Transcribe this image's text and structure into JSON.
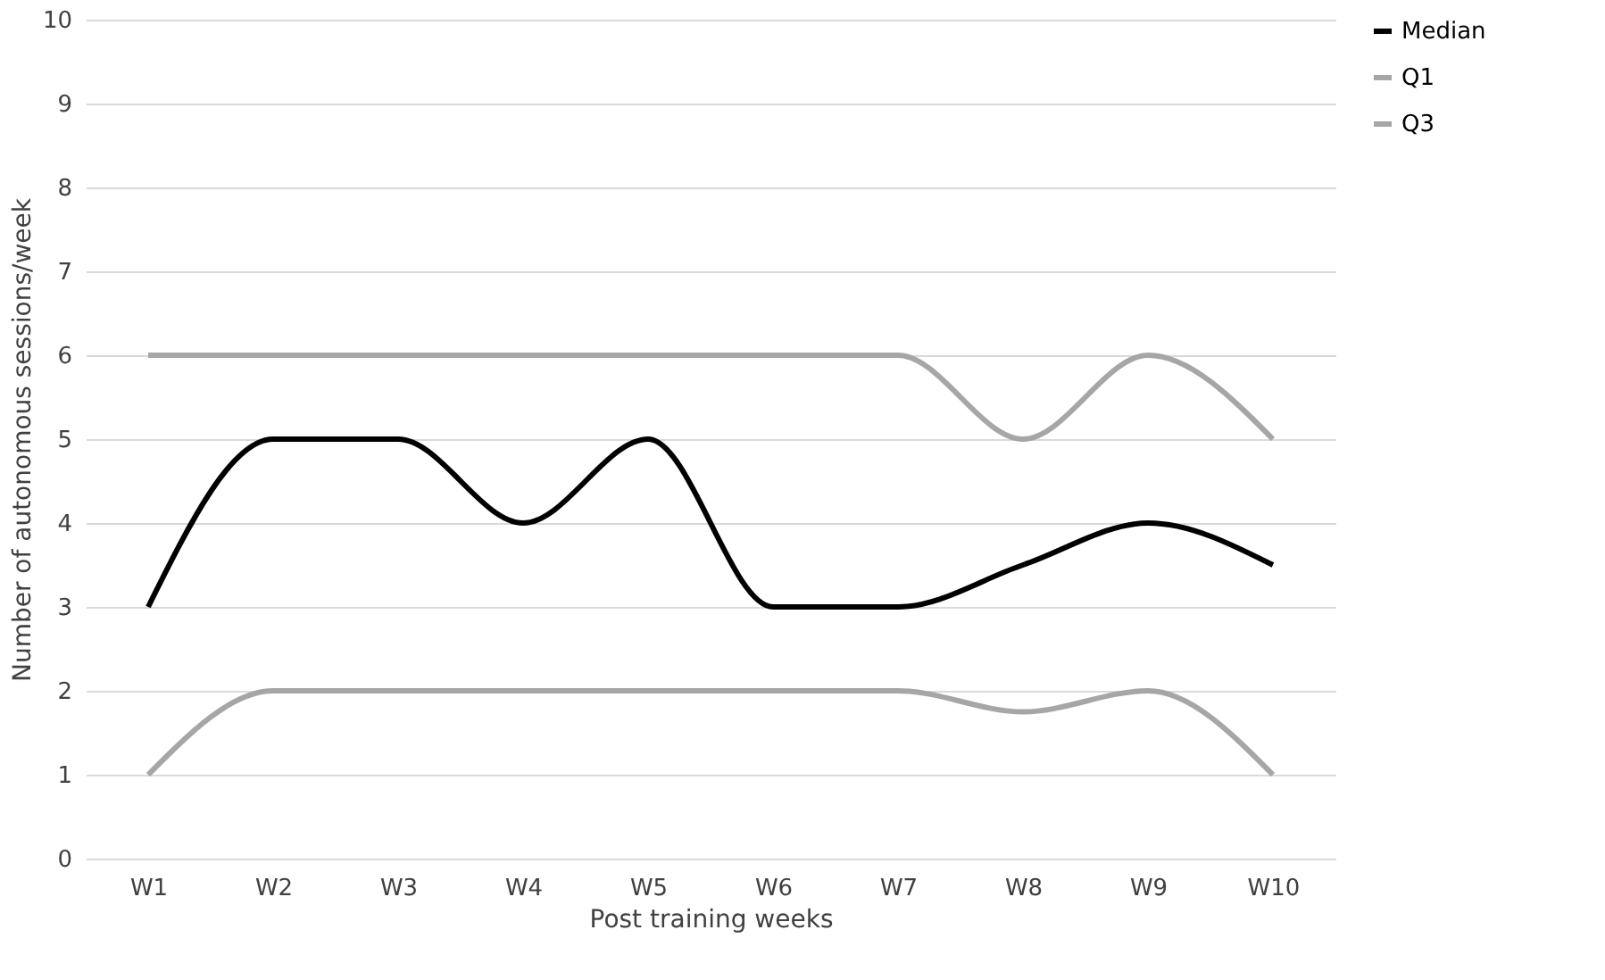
{
  "chart_data": {
    "type": "line",
    "xlabel": "Post training weeks",
    "ylabel": "Number of autonomous sessions/week",
    "categories": [
      "W1",
      "W2",
      "W3",
      "W4",
      "W5",
      "W6",
      "W7",
      "W8",
      "W9",
      "W10"
    ],
    "series": [
      {
        "name": "Median",
        "color": "#000000",
        "values": [
          3,
          5,
          5,
          4,
          5,
          3,
          3,
          3.5,
          4,
          3.5
        ]
      },
      {
        "name": "Q1",
        "color": "#a6a6a6",
        "values": [
          1,
          2,
          2,
          2,
          2,
          2,
          2,
          1.75,
          2,
          1
        ]
      },
      {
        "name": "Q3",
        "color": "#a6a6a6",
        "values": [
          6,
          6,
          6,
          6,
          6,
          6,
          6,
          5,
          6,
          5
        ]
      }
    ],
    "ylim": [
      0,
      10
    ],
    "yticks": [
      0,
      1,
      2,
      3,
      4,
      5,
      6,
      7,
      8,
      9,
      10
    ],
    "grid": "y",
    "legend": "right",
    "marker": "none",
    "line_style": "solid"
  }
}
